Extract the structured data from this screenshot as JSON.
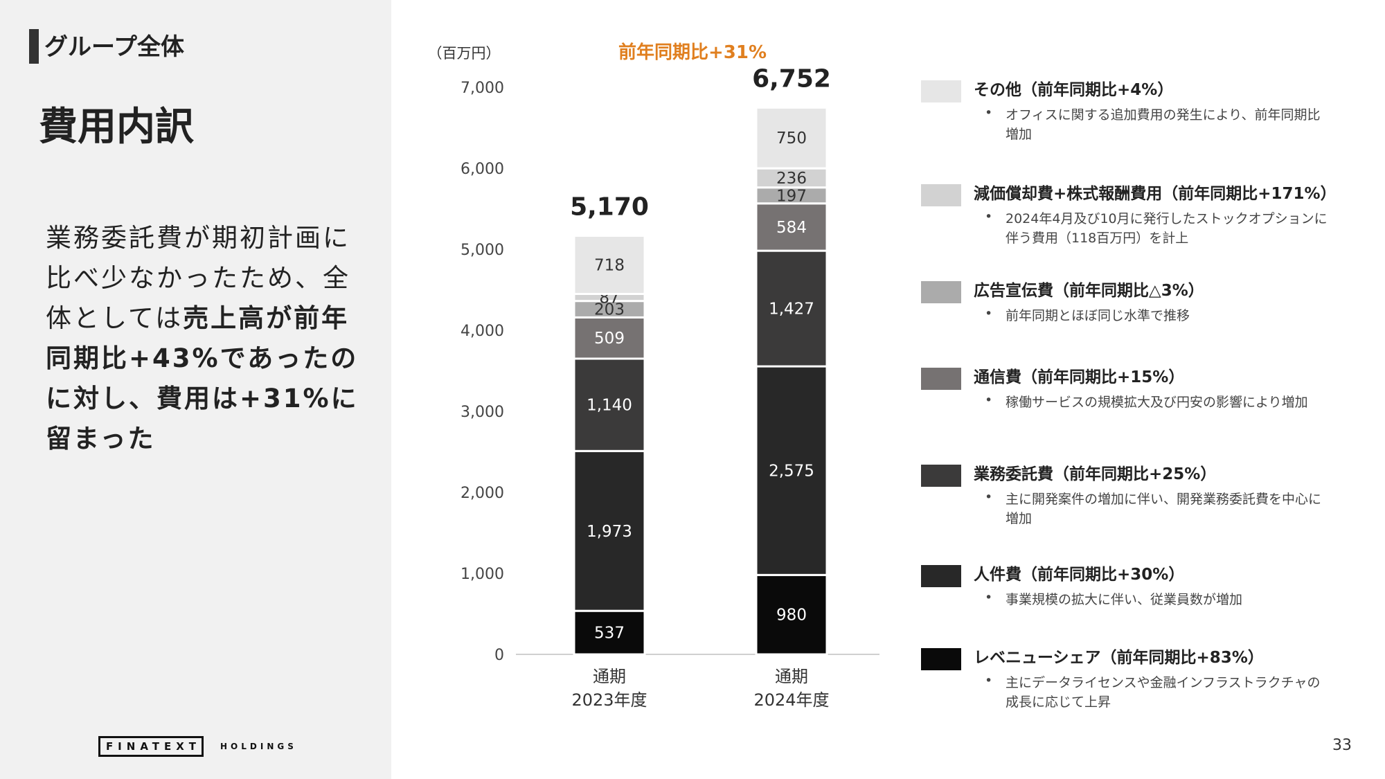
{
  "header": {
    "section": "グループ全体",
    "title": "費用内訳"
  },
  "summary": {
    "part1": "業務委託費が期初計画に比べ少なかったため、全体としては",
    "part2": "売上高が前年同期比+43%であったのに対し、費用は+31%に留まった"
  },
  "logo": {
    "name": "FINATEXT",
    "sub": "HOLDINGS"
  },
  "page_number": "33",
  "chart_data": {
    "type": "bar",
    "stacked": true,
    "unit_label": "（百万円）",
    "growth_label": "前年同期比+31%",
    "growth_color": "#e07f1f",
    "categories": [
      "通期\n2023年度",
      "通期\n2024年度"
    ],
    "category_lines": [
      [
        "通期",
        "2023年度"
      ],
      [
        "通期",
        "2024年度"
      ]
    ],
    "totals": [
      "5,170",
      "6,752"
    ],
    "yticks": [
      "0",
      "1,000",
      "2,000",
      "3,000",
      "4,000",
      "5,000",
      "6,000",
      "7,000"
    ],
    "ylim": [
      0,
      7000
    ],
    "grid": false,
    "series": [
      {
        "name": "レベニューシェア",
        "values": [
          537,
          980
        ],
        "labels": [
          "537",
          "980"
        ],
        "color": "#0a0a0a",
        "text_color": "#ffffff"
      },
      {
        "name": "人件費",
        "values": [
          1973,
          2575
        ],
        "labels": [
          "1,973",
          "2,575"
        ],
        "color": "#282828",
        "text_color": "#ffffff"
      },
      {
        "name": "業務委託費",
        "values": [
          1140,
          1427
        ],
        "labels": [
          "1,140",
          "1,427"
        ],
        "color": "#3b3a3a",
        "text_color": "#ffffff"
      },
      {
        "name": "通信費",
        "values": [
          509,
          584
        ],
        "labels": [
          "509",
          "584"
        ],
        "color": "#767272",
        "text_color": "#ffffff"
      },
      {
        "name": "広告宣伝費",
        "values": [
          203,
          197
        ],
        "labels": [
          "203",
          "197"
        ],
        "color": "#ababab",
        "text_color": "#333333"
      },
      {
        "name": "減価償却費+株式報酬費用",
        "values": [
          87,
          236
        ],
        "labels": [
          "87",
          "236"
        ],
        "color": "#d2d2d2",
        "text_color": "#333333"
      },
      {
        "name": "その他",
        "values": [
          718,
          750
        ],
        "labels": [
          "718",
          "750"
        ],
        "color": "#e6e6e6",
        "text_color": "#333333"
      }
    ]
  },
  "legend": [
    {
      "title": "その他（前年同期比+4%）",
      "desc": "オフィスに関する追加費用の発生により、前年同期比増加",
      "color": "#e6e6e6"
    },
    {
      "title": "減価償却費+株式報酬費用（前年同期比+171%）",
      "desc": "2024年4月及び10月に発行したストックオプションに伴う費用（118百万円）を計上",
      "color": "#d2d2d2"
    },
    {
      "title": "広告宣伝費（前年同期比△3%）",
      "desc": "前年同期とほぼ同じ水準で推移",
      "color": "#ababab"
    },
    {
      "title": "通信費（前年同期比+15%）",
      "desc": "稼働サービスの規模拡大及び円安の影響により増加",
      "color": "#767272"
    },
    {
      "title": "業務委託費（前年同期比+25%）",
      "desc": "主に開発案件の増加に伴い、開発業務委託費を中心に増加",
      "color": "#3b3a3a"
    },
    {
      "title": "人件費（前年同期比+30%）",
      "desc": "事業規模の拡大に伴い、従業員数が増加",
      "color": "#282828"
    },
    {
      "title": "レベニューシェア（前年同期比+83%）",
      "desc": "主にデータライセンスや金融インフラストラクチャの成長に応じて上昇",
      "color": "#0a0a0a"
    }
  ]
}
